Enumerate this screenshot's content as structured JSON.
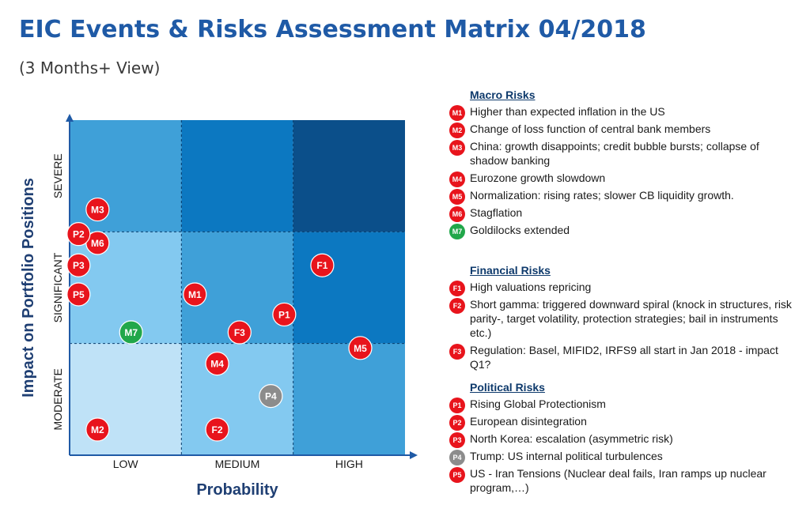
{
  "title": "EIC Events & Risks Assessment Matrix 04/2018",
  "subtitle": "(3 Months+ View)",
  "colors": {
    "red": "#e8141c",
    "green": "#21a74a",
    "gray": "#8c8c8c",
    "cell_low": "#bfe2f7",
    "cell_mid_light": "#83c9f0",
    "cell_mid": "#3fa0d8",
    "cell_strong": "#0c78c1",
    "cell_dark": "#0b4f8a",
    "title": "#1f5aa6",
    "axis_label": "#1f3f73"
  },
  "chart_data": {
    "type": "scatter",
    "title": "EIC Events & Risks Assessment Matrix 04/2018",
    "subtitle": "(3 Months+ View)",
    "xlabel": "Probability",
    "ylabel": "Impact on Portfolio Positions",
    "xlim": [
      0,
      3
    ],
    "ylim": [
      0,
      3
    ],
    "x_categories": [
      "LOW",
      "MEDIUM",
      "HIGH"
    ],
    "y_categories": [
      "MODERATE",
      "SIGNIFICANT",
      "SEVERE"
    ],
    "cell_shades": [
      [
        "cell_low",
        "cell_mid_light",
        "cell_mid"
      ],
      [
        "cell_mid_light",
        "cell_mid",
        "cell_strong"
      ],
      [
        "cell_mid",
        "cell_strong",
        "cell_dark"
      ]
    ],
    "points": [
      {
        "label": "M1",
        "x": 1.12,
        "y": 1.44,
        "color": "red"
      },
      {
        "label": "M2",
        "x": 0.25,
        "y": 0.23,
        "color": "red"
      },
      {
        "label": "M3",
        "x": 0.25,
        "y": 2.2,
        "color": "red"
      },
      {
        "label": "M4",
        "x": 1.32,
        "y": 0.82,
        "color": "red"
      },
      {
        "label": "M5",
        "x": 2.6,
        "y": 0.96,
        "color": "red"
      },
      {
        "label": "M6",
        "x": 0.25,
        "y": 1.9,
        "color": "red"
      },
      {
        "label": "M7",
        "x": 0.55,
        "y": 1.1,
        "color": "green"
      },
      {
        "label": "F1",
        "x": 2.26,
        "y": 1.7,
        "color": "red"
      },
      {
        "label": "F2",
        "x": 1.32,
        "y": 0.23,
        "color": "red"
      },
      {
        "label": "F3",
        "x": 1.52,
        "y": 1.1,
        "color": "red"
      },
      {
        "label": "P1",
        "x": 1.92,
        "y": 1.26,
        "color": "red"
      },
      {
        "label": "P2",
        "x": 0.08,
        "y": 1.98,
        "color": "red"
      },
      {
        "label": "P3",
        "x": 0.08,
        "y": 1.7,
        "color": "red"
      },
      {
        "label": "P4",
        "x": 1.8,
        "y": 0.53,
        "color": "gray"
      },
      {
        "label": "P5",
        "x": 0.08,
        "y": 1.44,
        "color": "red"
      }
    ]
  },
  "legend": [
    {
      "heading": "Macro Risks",
      "items": [
        {
          "code": "M1",
          "color": "red",
          "text": "Higher than expected inflation in the US"
        },
        {
          "code": "M2",
          "color": "red",
          "text": "Change of loss function of central bank members"
        },
        {
          "code": "M3",
          "color": "red",
          "text": "China: growth disappoints; credit bubble bursts; collapse of shadow banking"
        },
        {
          "code": "M4",
          "color": "red",
          "text": "Eurozone growth slowdown"
        },
        {
          "code": "M5",
          "color": "red",
          "text": "Normalization: rising rates; slower CB liquidity growth."
        },
        {
          "code": "M6",
          "color": "red",
          "text": "Stagflation"
        },
        {
          "code": "M7",
          "color": "green",
          "text": "Goldilocks extended"
        }
      ]
    },
    {
      "heading": "Financial Risks",
      "items": [
        {
          "code": "F1",
          "color": "red",
          "text": "High valuations repricing"
        },
        {
          "code": "F2",
          "color": "red",
          "text": "Short gamma: triggered downward spiral (knock in structures, risk parity-, target volatility, protection strategies; bail in instruments etc.)"
        },
        {
          "code": "F3",
          "color": "red",
          "text": "Regulation: Basel, MIFID2, IRFS9 all start in Jan 2018 - impact Q1?"
        }
      ]
    },
    {
      "heading": "Political Risks",
      "items": [
        {
          "code": "P1",
          "color": "red",
          "text": "Rising Global Protectionism"
        },
        {
          "code": "P2",
          "color": "red",
          "text": "European disintegration"
        },
        {
          "code": "P3",
          "color": "red",
          "text": "North Korea: escalation (asymmetric risk)"
        },
        {
          "code": "P4",
          "color": "gray",
          "text": "Trump: US internal political turbulences"
        },
        {
          "code": "P5",
          "color": "red",
          "text": "US - Iran Tensions (Nuclear deal fails, Iran ramps up nuclear program,…)"
        }
      ]
    }
  ]
}
